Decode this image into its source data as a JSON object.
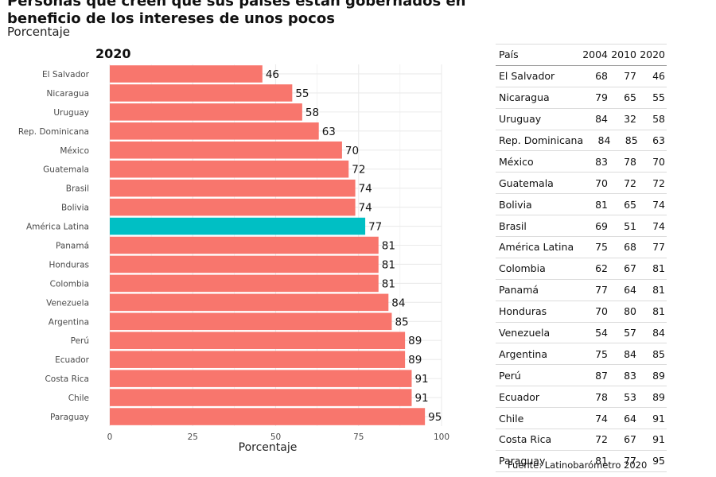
{
  "title": "Personas que creen que sus países están gobernados en beneficio de los intereses de unos pocos",
  "subtitle": "Porcentaje",
  "source": "Fuente: Latinobarómetro 2020",
  "colors": {
    "bar": "#F8766D",
    "highlight": "#00BFC4",
    "grid": "#ebebeb"
  },
  "chart_data": {
    "type": "bar",
    "orientation": "horizontal",
    "panel_title": "2020",
    "xlabel": "Porcentaje",
    "ylabel": "",
    "xlim": [
      0,
      100
    ],
    "xticks": [
      0,
      25,
      50,
      75,
      100
    ],
    "grid": true,
    "highlight_category": "América Latina",
    "categories": [
      "El Salvador",
      "Nicaragua",
      "Uruguay",
      "Rep. Dominicana",
      "México",
      "Guatemala",
      "Brasil",
      "Bolivia",
      "América Latina",
      "Panamá",
      "Honduras",
      "Colombia",
      "Venezuela",
      "Argentina",
      "Perú",
      "Ecuador",
      "Costa Rica",
      "Chile",
      "Paraguay"
    ],
    "values": [
      46,
      55,
      58,
      63,
      70,
      72,
      74,
      74,
      77,
      81,
      81,
      81,
      84,
      85,
      89,
      89,
      91,
      91,
      95
    ]
  },
  "table": {
    "headers": [
      "País",
      "2004",
      "2010",
      "2020"
    ],
    "rows": [
      [
        "El Salvador",
        "68",
        "77",
        "46"
      ],
      [
        "Nicaragua",
        "79",
        "65",
        "55"
      ],
      [
        "Uruguay",
        "84",
        "32",
        "58"
      ],
      [
        "Rep. Dominicana",
        "84",
        "85",
        "63"
      ],
      [
        "México",
        "83",
        "78",
        "70"
      ],
      [
        "Guatemala",
        "70",
        "72",
        "72"
      ],
      [
        "Bolivia",
        "81",
        "65",
        "74"
      ],
      [
        "Brasil",
        "69",
        "51",
        "74"
      ],
      [
        "América Latina",
        "75",
        "68",
        "77"
      ],
      [
        "Colombia",
        "62",
        "67",
        "81"
      ],
      [
        "Panamá",
        "77",
        "64",
        "81"
      ],
      [
        "Honduras",
        "70",
        "80",
        "81"
      ],
      [
        "Venezuela",
        "54",
        "57",
        "84"
      ],
      [
        "Argentina",
        "75",
        "84",
        "85"
      ],
      [
        "Perú",
        "87",
        "83",
        "89"
      ],
      [
        "Ecuador",
        "78",
        "53",
        "89"
      ],
      [
        "Chile",
        "74",
        "64",
        "91"
      ],
      [
        "Costa Rica",
        "72",
        "67",
        "91"
      ],
      [
        "Paraguay",
        "81",
        "77",
        "95"
      ]
    ]
  }
}
